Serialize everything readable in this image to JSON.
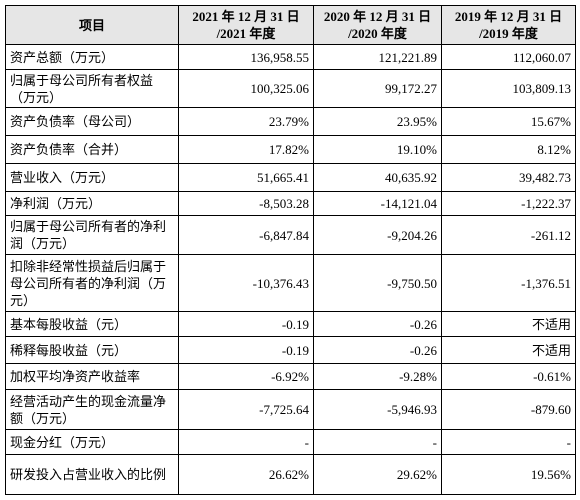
{
  "table": {
    "header": [
      "项目",
      [
        "2021 年 12 月 31 日",
        "/2021 年度"
      ],
      [
        "2020 年 12 月 31 日",
        "/2020 年度"
      ],
      [
        "2019 年 12 月 31 日",
        "/2019 年度"
      ]
    ],
    "rows": [
      [
        "资产总额（万元）",
        "136,958.55",
        "121,221.89",
        "112,060.07"
      ],
      [
        "归属于母公司所有者权益（万元）",
        "100,325.06",
        "99,172.27",
        "103,809.13"
      ],
      [
        "资产负债率（母公司）",
        "23.79%",
        "23.95%",
        "15.67%"
      ],
      [
        "资产负债率（合并）",
        "17.82%",
        "19.10%",
        "8.12%"
      ],
      [
        "营业收入（万元）",
        "51,665.41",
        "40,635.92",
        "39,482.73"
      ],
      [
        "净利润（万元）",
        "-8,503.28",
        "-14,121.04",
        "-1,222.37"
      ],
      [
        "归属于母公司所有者的净利润（万元）",
        "-6,847.84",
        "-9,204.26",
        "-261.12"
      ],
      [
        "扣除非经常性损益后归属于母公司所有者的净利润（万元）",
        "-10,376.43",
        "-9,750.50",
        "-1,376.51"
      ],
      [
        "基本每股收益（元）",
        "-0.19",
        "-0.26",
        "不适用"
      ],
      [
        "稀释每股收益（元）",
        "-0.19",
        "-0.26",
        "不适用"
      ],
      [
        "加权平均净资产收益率",
        "-6.92%",
        "-9.28%",
        "-0.61%"
      ],
      [
        "经营活动产生的现金流量净额（万元）",
        "-7,725.64",
        "-5,946.93",
        "-879.60"
      ],
      [
        "现金分红（万元）",
        "-",
        "-",
        "-"
      ],
      [
        "研发投入占营业收入的比例",
        "26.62%",
        "29.62%",
        "19.56%"
      ]
    ]
  }
}
